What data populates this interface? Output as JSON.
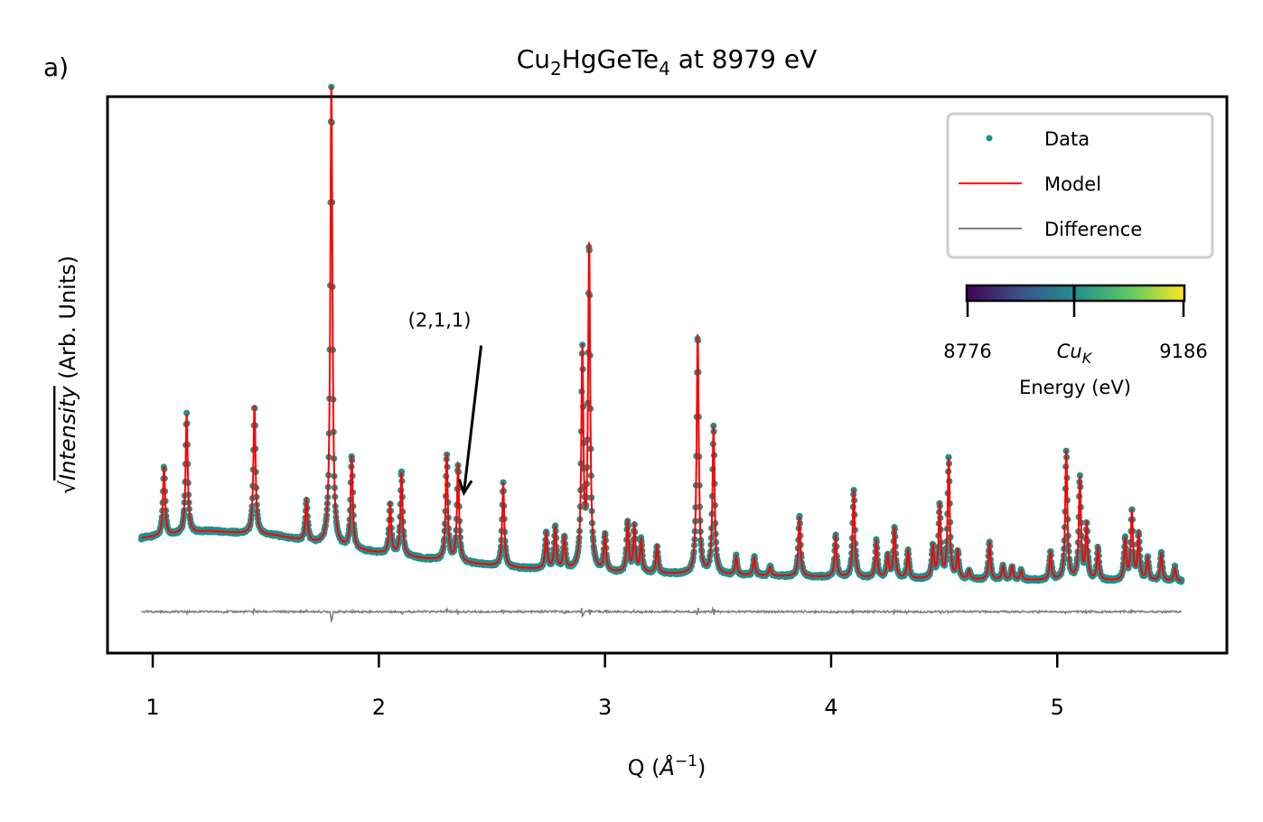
{
  "panel_label": "a)",
  "chart_data": {
    "type": "scatter",
    "title": {
      "base": "Cu",
      "sub1": "2",
      "mid": "HgGeTe",
      "sub2": "4",
      "tail": " at 8979 eV"
    },
    "xlabel": {
      "prefix": "Q (",
      "unit": "Å",
      "sup": "−1",
      "suffix": ")"
    },
    "ylabel": {
      "root": "√",
      "italic": "Intensity",
      "rest": " (Arb. Units)"
    },
    "xlim": [
      0.8,
      5.75
    ],
    "ylim": [
      -0.16,
      1.05
    ],
    "xticks": [
      1,
      2,
      3,
      4,
      5
    ],
    "xtick_labels": [
      "1",
      "2",
      "3",
      "4",
      "5"
    ],
    "x_range": [
      0.95,
      5.55
    ],
    "legend": {
      "position": "top-right",
      "entries": [
        {
          "label": "Data",
          "color": "#21908d",
          "style": "dot"
        },
        {
          "label": "Model",
          "color": "#ff0000",
          "style": "line"
        },
        {
          "label": "Difference",
          "color": "#808080",
          "style": "line"
        }
      ]
    },
    "colorbar": {
      "label": "Energy (eV)",
      "min_label": "8776",
      "mid_label": "Cu",
      "mid_sub": "K",
      "max_label": "9186",
      "colors": [
        "#440154",
        "#3b528b",
        "#21908d",
        "#5dc963",
        "#fde725"
      ]
    },
    "annotation": {
      "text": "(2,1,1)",
      "target": [
        2.36,
        0.2
      ],
      "text_pos": [
        2.62,
        0.44
      ]
    },
    "background": [
      [
        0.95,
        0.09
      ],
      [
        1.25,
        0.105
      ],
      [
        1.55,
        0.095
      ],
      [
        1.8,
        0.07
      ],
      [
        2.2,
        0.045
      ],
      [
        2.6,
        0.025
      ],
      [
        3.0,
        0.015
      ],
      [
        3.5,
        0.01
      ],
      [
        4.0,
        0.005
      ],
      [
        4.5,
        0.0
      ],
      [
        5.0,
        -0.002
      ],
      [
        5.55,
        -0.004
      ]
    ],
    "peaks": [
      {
        "q": 1.05,
        "h": 0.15
      },
      {
        "q": 1.15,
        "h": 0.26
      },
      {
        "q": 1.45,
        "h": 0.28
      },
      {
        "q": 1.68,
        "h": 0.09
      },
      {
        "q": 1.79,
        "h": 1.0
      },
      {
        "q": 1.88,
        "h": 0.2
      },
      {
        "q": 2.05,
        "h": 0.11
      },
      {
        "q": 2.1,
        "h": 0.18
      },
      {
        "q": 2.3,
        "h": 0.23
      },
      {
        "q": 2.35,
        "h": 0.21
      },
      {
        "q": 2.55,
        "h": 0.18
      },
      {
        "q": 2.74,
        "h": 0.08
      },
      {
        "q": 2.78,
        "h": 0.09
      },
      {
        "q": 2.82,
        "h": 0.07
      },
      {
        "q": 2.9,
        "h": 0.47
      },
      {
        "q": 2.93,
        "h": 0.7
      },
      {
        "q": 3.0,
        "h": 0.08
      },
      {
        "q": 3.1,
        "h": 0.11
      },
      {
        "q": 3.13,
        "h": 0.1
      },
      {
        "q": 3.16,
        "h": 0.07
      },
      {
        "q": 3.23,
        "h": 0.06
      },
      {
        "q": 3.41,
        "h": 0.52
      },
      {
        "q": 3.48,
        "h": 0.32
      },
      {
        "q": 3.58,
        "h": 0.04
      },
      {
        "q": 3.66,
        "h": 0.04
      },
      {
        "q": 3.73,
        "h": 0.02
      },
      {
        "q": 3.86,
        "h": 0.13
      },
      {
        "q": 4.02,
        "h": 0.09
      },
      {
        "q": 4.1,
        "h": 0.19
      },
      {
        "q": 4.2,
        "h": 0.08
      },
      {
        "q": 4.25,
        "h": 0.05
      },
      {
        "q": 4.28,
        "h": 0.11
      },
      {
        "q": 4.34,
        "h": 0.06
      },
      {
        "q": 4.45,
        "h": 0.07
      },
      {
        "q": 4.48,
        "h": 0.16
      },
      {
        "q": 4.52,
        "h": 0.26
      },
      {
        "q": 4.56,
        "h": 0.06
      },
      {
        "q": 4.61,
        "h": 0.02
      },
      {
        "q": 4.7,
        "h": 0.08
      },
      {
        "q": 4.76,
        "h": 0.03
      },
      {
        "q": 4.8,
        "h": 0.03
      },
      {
        "q": 4.84,
        "h": 0.02
      },
      {
        "q": 4.97,
        "h": 0.06
      },
      {
        "q": 5.04,
        "h": 0.28
      },
      {
        "q": 5.1,
        "h": 0.22
      },
      {
        "q": 5.13,
        "h": 0.12
      },
      {
        "q": 5.18,
        "h": 0.07
      },
      {
        "q": 5.3,
        "h": 0.09
      },
      {
        "q": 5.33,
        "h": 0.15
      },
      {
        "q": 5.36,
        "h": 0.1
      },
      {
        "q": 5.4,
        "h": 0.05
      },
      {
        "q": 5.46,
        "h": 0.06
      },
      {
        "q": 5.52,
        "h": 0.03
      }
    ],
    "difference_offset": -0.07
  }
}
